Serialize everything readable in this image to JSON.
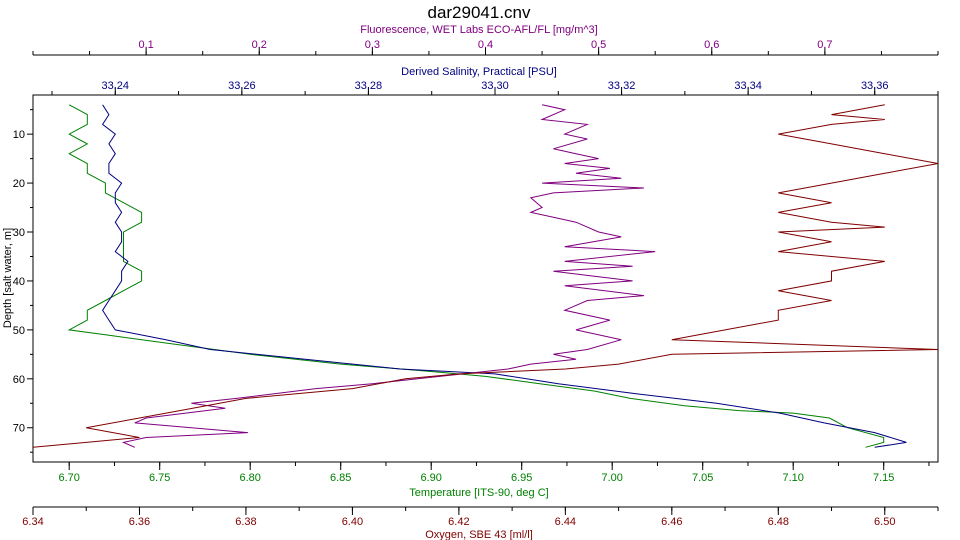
{
  "chart_data": {
    "type": "line",
    "title": "dar29041.cnv",
    "ylabel": "Depth [salt water, m]",
    "ylim": [
      77,
      2
    ],
    "y_ticks": [
      10,
      20,
      30,
      40,
      50,
      60,
      70
    ],
    "grid": false,
    "legend": "none",
    "axes": [
      {
        "id": "fluorescence",
        "position": "top-outer",
        "label": "Fluorescence, WET Labs ECO-AFL/FL [mg/m^3]",
        "color": "#800080",
        "range": [
          0.0,
          0.8
        ],
        "ticks": [
          "0.1",
          "0.2",
          "0.3",
          "0.4",
          "0.5",
          "0.6",
          "0.7"
        ]
      },
      {
        "id": "salinity",
        "position": "top-inner",
        "label": "Derived Salinity, Practical [PSU]",
        "color": "#000080",
        "range": [
          33.227,
          33.37
        ],
        "ticks": [
          "33.24",
          "33.26",
          "33.28",
          "33.30",
          "33.32",
          "33.34",
          "33.36"
        ]
      },
      {
        "id": "temperature",
        "position": "bottom-inner",
        "label": "Temperature [ITS-90, deg C]",
        "color": "#008000",
        "range": [
          6.68,
          7.18
        ],
        "ticks": [
          "6.70",
          "6.75",
          "6.80",
          "6.85",
          "6.90",
          "6.95",
          "7.00",
          "7.05",
          "7.10",
          "7.15"
        ]
      },
      {
        "id": "oxygen",
        "position": "bottom-outer",
        "label": "Oxygen, SBE 43 [ml/l]",
        "color": "#800000",
        "range": [
          6.34,
          6.51
        ],
        "ticks": [
          "6.34",
          "6.36",
          "6.38",
          "6.40",
          "6.42",
          "6.44",
          "6.46",
          "6.48",
          "6.50"
        ]
      }
    ],
    "series": [
      {
        "axis": "temperature",
        "color": "#008000",
        "points": [
          [
            6.7,
            4
          ],
          [
            6.71,
            6
          ],
          [
            6.71,
            8
          ],
          [
            6.7,
            10
          ],
          [
            6.71,
            12
          ],
          [
            6.7,
            14
          ],
          [
            6.71,
            16
          ],
          [
            6.71,
            18
          ],
          [
            6.72,
            20
          ],
          [
            6.72,
            22
          ],
          [
            6.73,
            24
          ],
          [
            6.74,
            26
          ],
          [
            6.74,
            28
          ],
          [
            6.73,
            30
          ],
          [
            6.73,
            32
          ],
          [
            6.73,
            34
          ],
          [
            6.73,
            36
          ],
          [
            6.74,
            38
          ],
          [
            6.74,
            40
          ],
          [
            6.73,
            42
          ],
          [
            6.72,
            44
          ],
          [
            6.71,
            46
          ],
          [
            6.71,
            48
          ],
          [
            6.7,
            50
          ],
          [
            6.72,
            51
          ],
          [
            6.76,
            53
          ],
          [
            6.8,
            55
          ],
          [
            6.85,
            57
          ],
          [
            6.9,
            58.5
          ],
          [
            6.93,
            59.5
          ],
          [
            6.96,
            61
          ],
          [
            6.99,
            62.5
          ],
          [
            7.01,
            64
          ],
          [
            7.04,
            65.5
          ],
          [
            7.07,
            66.5
          ],
          [
            7.1,
            67
          ],
          [
            7.12,
            68
          ],
          [
            7.13,
            70
          ],
          [
            7.15,
            72
          ],
          [
            7.15,
            73
          ],
          [
            7.14,
            74
          ]
        ]
      },
      {
        "axis": "salinity",
        "color": "#000080",
        "points": [
          [
            33.238,
            4
          ],
          [
            33.239,
            6
          ],
          [
            33.238,
            8
          ],
          [
            33.24,
            10
          ],
          [
            33.239,
            12
          ],
          [
            33.24,
            14
          ],
          [
            33.239,
            16
          ],
          [
            33.239,
            18
          ],
          [
            33.241,
            20
          ],
          [
            33.24,
            22
          ],
          [
            33.24,
            24
          ],
          [
            33.241,
            26
          ],
          [
            33.24,
            28
          ],
          [
            33.241,
            30
          ],
          [
            33.241,
            32
          ],
          [
            33.24,
            34
          ],
          [
            33.242,
            36
          ],
          [
            33.241,
            38
          ],
          [
            33.241,
            40
          ],
          [
            33.24,
            42
          ],
          [
            33.239,
            44
          ],
          [
            33.238,
            46
          ],
          [
            33.239,
            48
          ],
          [
            33.24,
            50
          ],
          [
            33.248,
            52
          ],
          [
            33.255,
            54
          ],
          [
            33.27,
            56
          ],
          [
            33.285,
            58
          ],
          [
            33.3,
            59
          ],
          [
            33.31,
            61
          ],
          [
            33.322,
            63
          ],
          [
            33.335,
            65
          ],
          [
            33.345,
            67
          ],
          [
            33.352,
            69
          ],
          [
            33.36,
            71
          ],
          [
            33.365,
            73
          ],
          [
            33.36,
            74
          ]
        ]
      },
      {
        "axis": "fluorescence",
        "color": "#800080",
        "points": [
          [
            0.45,
            4
          ],
          [
            0.47,
            5
          ],
          [
            0.45,
            7
          ],
          [
            0.49,
            8
          ],
          [
            0.47,
            10
          ],
          [
            0.49,
            11
          ],
          [
            0.46,
            13
          ],
          [
            0.48,
            14
          ],
          [
            0.5,
            15
          ],
          [
            0.47,
            16
          ],
          [
            0.51,
            17
          ],
          [
            0.48,
            18
          ],
          [
            0.52,
            19
          ],
          [
            0.45,
            20
          ],
          [
            0.54,
            21
          ],
          [
            0.46,
            22
          ],
          [
            0.44,
            23
          ],
          [
            0.45,
            25
          ],
          [
            0.44,
            26
          ],
          [
            0.46,
            27
          ],
          [
            0.48,
            28
          ],
          [
            0.5,
            30
          ],
          [
            0.52,
            31
          ],
          [
            0.47,
            33
          ],
          [
            0.55,
            34
          ],
          [
            0.47,
            36
          ],
          [
            0.53,
            37
          ],
          [
            0.46,
            38
          ],
          [
            0.53,
            40
          ],
          [
            0.47,
            41
          ],
          [
            0.54,
            43
          ],
          [
            0.49,
            44
          ],
          [
            0.47,
            46
          ],
          [
            0.51,
            48
          ],
          [
            0.48,
            50
          ],
          [
            0.52,
            52
          ],
          [
            0.49,
            54
          ],
          [
            0.46,
            55
          ],
          [
            0.48,
            56
          ],
          [
            0.44,
            57
          ],
          [
            0.42,
            58
          ],
          [
            0.38,
            59
          ],
          [
            0.34,
            60
          ],
          [
            0.3,
            61
          ],
          [
            0.25,
            62
          ],
          [
            0.18,
            64
          ],
          [
            0.14,
            65
          ],
          [
            0.17,
            66
          ],
          [
            0.1,
            68
          ],
          [
            0.09,
            69
          ],
          [
            0.14,
            70
          ],
          [
            0.19,
            71
          ],
          [
            0.1,
            72
          ],
          [
            0.08,
            73
          ],
          [
            0.09,
            74
          ]
        ]
      },
      {
        "axis": "oxygen",
        "color": "#800000",
        "points": [
          [
            6.5,
            4
          ],
          [
            6.49,
            6
          ],
          [
            6.5,
            7
          ],
          [
            6.49,
            8
          ],
          [
            6.48,
            10
          ],
          [
            6.49,
            12
          ],
          [
            6.5,
            14
          ],
          [
            6.51,
            16
          ],
          [
            6.5,
            18
          ],
          [
            6.49,
            20
          ],
          [
            6.48,
            22
          ],
          [
            6.49,
            24
          ],
          [
            6.48,
            26
          ],
          [
            6.49,
            28
          ],
          [
            6.5,
            29
          ],
          [
            6.48,
            30
          ],
          [
            6.49,
            32
          ],
          [
            6.48,
            34
          ],
          [
            6.5,
            36
          ],
          [
            6.49,
            38
          ],
          [
            6.49,
            40
          ],
          [
            6.48,
            42
          ],
          [
            6.49,
            44
          ],
          [
            6.48,
            46
          ],
          [
            6.48,
            48
          ],
          [
            6.47,
            50
          ],
          [
            6.46,
            52
          ],
          [
            6.51,
            54
          ],
          [
            6.46,
            55
          ],
          [
            6.45,
            57
          ],
          [
            6.44,
            58
          ],
          [
            6.42,
            59
          ],
          [
            6.41,
            60
          ],
          [
            6.4,
            62
          ],
          [
            6.38,
            64
          ],
          [
            6.37,
            66
          ],
          [
            6.36,
            68
          ],
          [
            6.35,
            70
          ],
          [
            6.36,
            72
          ],
          [
            6.35,
            73
          ],
          [
            6.34,
            74
          ]
        ]
      }
    ]
  }
}
